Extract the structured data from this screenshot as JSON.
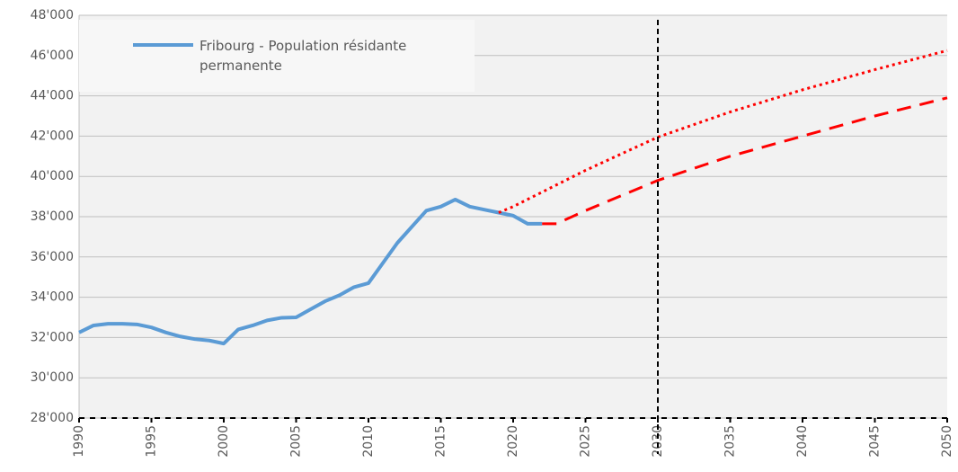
{
  "chart_data": {
    "type": "line",
    "series": [
      {
        "name": "Fribourg - Population résidante permanente",
        "color": "#5b9bd5",
        "style": "solid",
        "x": [
          1990,
          1991,
          1992,
          1993,
          1994,
          1995,
          1996,
          1997,
          1998,
          1999,
          2000,
          2001,
          2002,
          2003,
          2004,
          2005,
          2006,
          2007,
          2008,
          2009,
          2010,
          2011,
          2012,
          2013,
          2014,
          2015,
          2016,
          2017,
          2018,
          2019,
          2020,
          2021,
          2022
        ],
        "values": [
          32250,
          32600,
          32680,
          32680,
          32650,
          32500,
          32250,
          32050,
          31920,
          31850,
          31700,
          32400,
          32600,
          32850,
          32980,
          33000,
          33400,
          33800,
          34100,
          34500,
          34700,
          35700,
          36700,
          37500,
          38300,
          38500,
          38850,
          38500,
          38350,
          38200,
          38050,
          37650,
          37650
        ]
      },
      {
        "color": "#ff0000",
        "style": "dotted",
        "x": [
          2019,
          2020,
          2025,
          2030,
          2035,
          2040,
          2045,
          2050
        ],
        "values": [
          38200,
          38500,
          40300,
          41950,
          43200,
          44300,
          45300,
          46250
        ]
      },
      {
        "color": "#ff0000",
        "style": "dashed",
        "x": [
          2022,
          2023,
          2025,
          2030,
          2035,
          2040,
          2045,
          2050
        ],
        "values": [
          37650,
          37650,
          38300,
          39800,
          41000,
          42000,
          43000,
          43900
        ]
      }
    ],
    "vline": 2030,
    "xlim": [
      1990,
      2050
    ],
    "xticks": [
      1990,
      1995,
      2000,
      2005,
      2010,
      2015,
      2020,
      2025,
      2030,
      2035,
      2040,
      2045,
      2050
    ],
    "ylim": [
      28000,
      48000
    ],
    "yticks": [
      {
        "value": 28000,
        "label": "28'000"
      },
      {
        "value": 30000,
        "label": "30'000"
      },
      {
        "value": 32000,
        "label": "32'000"
      },
      {
        "value": 34000,
        "label": "34'000"
      },
      {
        "value": 36000,
        "label": "36'000"
      },
      {
        "value": 38000,
        "label": "38'000"
      },
      {
        "value": 40000,
        "label": "40'000"
      },
      {
        "value": 42000,
        "label": "42'000"
      },
      {
        "value": 44000,
        "label": "44'000"
      },
      {
        "value": 46000,
        "label": "46'000"
      },
      {
        "value": 48000,
        "label": "48'000"
      }
    ],
    "grid": true,
    "legend": "top-left"
  }
}
